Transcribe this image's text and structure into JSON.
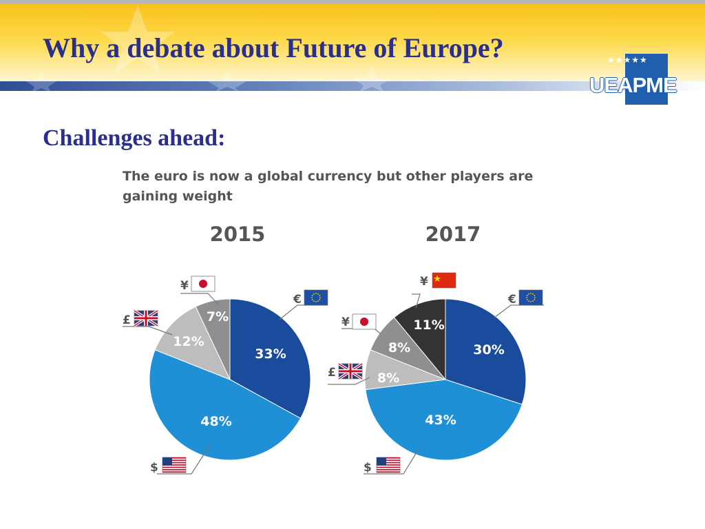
{
  "slide": {
    "title": "Why a debate about Future of Europe?",
    "subtitle": "Challenges ahead:",
    "logo_text": "UEAPME"
  },
  "chart_caption": "The euro is now a global currency but other players are gaining weight",
  "colors": {
    "title_text": "#2b2f8c",
    "header_yellow": "#f9c21b",
    "euro": "#1a4b9c",
    "dollar": "#1f8fd6",
    "pound": "#bdbdbd",
    "yen": "#8f8f8f",
    "yuan": "#333333"
  },
  "chart_data": [
    {
      "type": "pie",
      "title": "2015",
      "slices": [
        {
          "symbol": "€",
          "flag": "eu-flag-icon",
          "value": 33,
          "label": "33%",
          "color": "#1a4b9c"
        },
        {
          "symbol": "$",
          "flag": "us-flag-icon",
          "value": 48,
          "label": "48%",
          "color": "#1f8fd6"
        },
        {
          "symbol": "£",
          "flag": "uk-flag-icon",
          "value": 12,
          "label": "12%",
          "color": "#bdbdbd"
        },
        {
          "symbol": "¥",
          "flag": "japan-flag-icon",
          "value": 7,
          "label": "7%",
          "color": "#8f8f8f"
        }
      ]
    },
    {
      "type": "pie",
      "title": "2017",
      "slices": [
        {
          "symbol": "€",
          "flag": "eu-flag-icon",
          "value": 30,
          "label": "30%",
          "color": "#1a4b9c"
        },
        {
          "symbol": "$",
          "flag": "us-flag-icon",
          "value": 43,
          "label": "43%",
          "color": "#1f8fd6"
        },
        {
          "symbol": "£",
          "flag": "uk-flag-icon",
          "value": 8,
          "label": "8%",
          "color": "#bdbdbd"
        },
        {
          "symbol": "¥",
          "flag": "japan-flag-icon",
          "value": 8,
          "label": "8%",
          "color": "#8f8f8f"
        },
        {
          "symbol": "¥",
          "flag": "china-flag-icon",
          "value": 11,
          "label": "11%",
          "color": "#333333"
        }
      ]
    }
  ]
}
